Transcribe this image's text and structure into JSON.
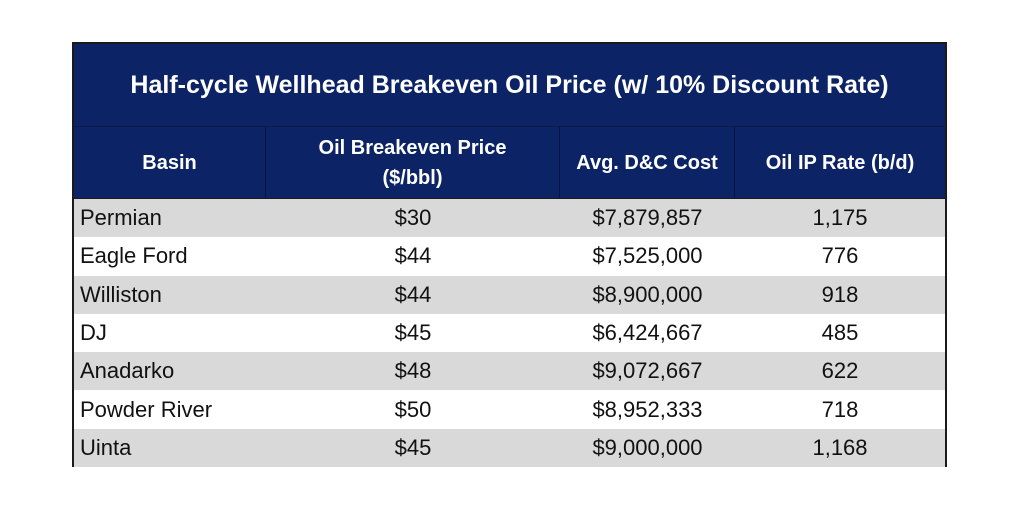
{
  "title": "Half-cycle Wellhead Breakeven Oil Price (w/ 10% Discount Rate)",
  "headers": {
    "basin": "Basin",
    "breakeven_line1": "Oil Breakeven Price",
    "breakeven_line2": "($/bbl)",
    "dc_cost": "Avg. D&C Cost",
    "ip_rate": "Oil IP Rate (b/d)"
  },
  "rows": [
    {
      "basin": "Permian",
      "breakeven": "$30",
      "dc_cost": "$7,879,857",
      "ip_rate": "1,175"
    },
    {
      "basin": "Eagle Ford",
      "breakeven": "$44",
      "dc_cost": "$7,525,000",
      "ip_rate": "776"
    },
    {
      "basin": "Williston",
      "breakeven": "$44",
      "dc_cost": "$8,900,000",
      "ip_rate": "918"
    },
    {
      "basin": "DJ",
      "breakeven": "$45",
      "dc_cost": "$6,424,667",
      "ip_rate": "485"
    },
    {
      "basin": "Anadarko",
      "breakeven": "$48",
      "dc_cost": "$9,072,667",
      "ip_rate": "622"
    },
    {
      "basin": "Powder River",
      "breakeven": "$50",
      "dc_cost": "$8,952,333",
      "ip_rate": "718"
    },
    {
      "basin": "Uinta",
      "breakeven": "$45",
      "dc_cost": "$9,000,000",
      "ip_rate": "1,168"
    }
  ],
  "colors": {
    "header_bg": "#0c2466",
    "header_text": "#ffffff",
    "stripe": "#d9d9d9"
  }
}
